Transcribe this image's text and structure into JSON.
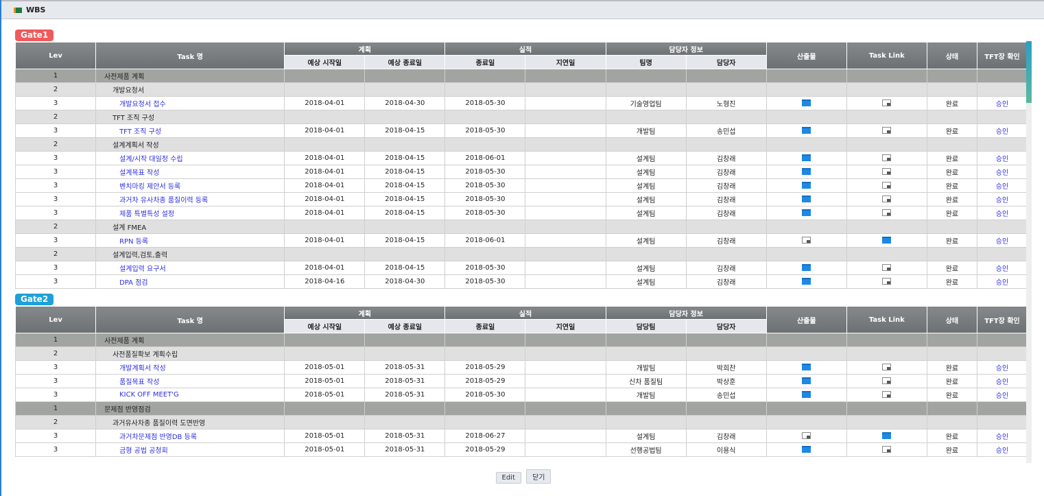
{
  "window": {
    "title": "WBS"
  },
  "buttons": {
    "edit": "Edit",
    "close": "닫기"
  },
  "colors": {
    "gate1": "#f05a5a",
    "gate2": "#1ea0d8"
  },
  "gates": [
    {
      "label": "Gate1",
      "headers": {
        "lev": "Lev",
        "task": "Task 명",
        "plan": "계획",
        "plan_start": "예상 시작일",
        "plan_end": "예상 종료일",
        "actual": "실적",
        "actual_end": "종료일",
        "delay": "지연일",
        "owner": "담당자 정보",
        "team": "팀명",
        "person": "담당자",
        "artifact": "산출물",
        "task_link": "Task Link",
        "status": "상태",
        "tft": "TFT장 확인"
      },
      "rows": [
        {
          "lev": "1",
          "task": "사전제품 계획"
        },
        {
          "lev": "2",
          "task": "개발요청서"
        },
        {
          "lev": "3",
          "task": "개발요청서 접수",
          "start": "2018-04-01",
          "end": "2018-04-30",
          "done": "2018-05-30",
          "delay": "",
          "team": "기술영업팀",
          "person": "노형진",
          "artifact": "folder-filled",
          "link": "folder-empty",
          "status": "완료",
          "tft": "승인"
        },
        {
          "lev": "2",
          "task": "TFT 조직 구성"
        },
        {
          "lev": "3",
          "task": "TFT 조직 구성",
          "start": "2018-04-01",
          "end": "2018-04-15",
          "done": "2018-05-30",
          "delay": "",
          "team": "개발팀",
          "person": "송민섭",
          "artifact": "folder-filled",
          "link": "folder-empty",
          "status": "완료",
          "tft": "승인"
        },
        {
          "lev": "2",
          "task": "설계계획서 작성"
        },
        {
          "lev": "3",
          "task": "설계/시작 대일정 수립",
          "start": "2018-04-01",
          "end": "2018-04-15",
          "done": "2018-06-01",
          "delay": "",
          "team": "설계팀",
          "person": "김창래",
          "artifact": "folder-filled",
          "link": "folder-empty",
          "status": "완료",
          "tft": "승인"
        },
        {
          "lev": "3",
          "task": "설계목표 작성",
          "start": "2018-04-01",
          "end": "2018-04-15",
          "done": "2018-05-30",
          "delay": "",
          "team": "설계팀",
          "person": "김창래",
          "artifact": "folder-filled",
          "link": "folder-empty",
          "status": "완료",
          "tft": "승인"
        },
        {
          "lev": "3",
          "task": "벤치마킹 제안서 등록",
          "start": "2018-04-01",
          "end": "2018-04-15",
          "done": "2018-05-30",
          "delay": "",
          "team": "설계팀",
          "person": "김창래",
          "artifact": "folder-filled",
          "link": "folder-empty",
          "status": "완료",
          "tft": "승인"
        },
        {
          "lev": "3",
          "task": "과거차 유사차종 품질이력 등록",
          "start": "2018-04-01",
          "end": "2018-04-15",
          "done": "2018-05-30",
          "delay": "",
          "team": "설계팀",
          "person": "김창래",
          "artifact": "folder-filled",
          "link": "folder-empty",
          "status": "완료",
          "tft": "승인"
        },
        {
          "lev": "3",
          "task": "제품 특별특성 설정",
          "start": "2018-04-01",
          "end": "2018-04-15",
          "done": "2018-05-30",
          "delay": "",
          "team": "설계팀",
          "person": "김창래",
          "artifact": "folder-filled",
          "link": "folder-empty",
          "status": "완료",
          "tft": "승인"
        },
        {
          "lev": "2",
          "task": "설계 FMEA"
        },
        {
          "lev": "3",
          "task": "RPN 등록",
          "start": "2018-04-01",
          "end": "2018-04-15",
          "done": "2018-06-01",
          "delay": "",
          "team": "설계팀",
          "person": "김창래",
          "artifact": "folder-empty",
          "link": "folder-filled",
          "status": "완료",
          "tft": "승인"
        },
        {
          "lev": "2",
          "task": "설계입력,검토,출력"
        },
        {
          "lev": "3",
          "task": "설계입력 요구서",
          "start": "2018-04-01",
          "end": "2018-04-15",
          "done": "2018-05-30",
          "delay": "",
          "team": "설계팀",
          "person": "김창래",
          "artifact": "folder-filled",
          "link": "folder-empty",
          "status": "완료",
          "tft": "승인"
        },
        {
          "lev": "3",
          "task": "DPA 점검",
          "start": "2018-04-16",
          "end": "2018-04-30",
          "done": "2018-05-30",
          "delay": "",
          "team": "설계팀",
          "person": "김창래",
          "artifact": "folder-filled",
          "link": "folder-empty",
          "status": "완료",
          "tft": "승인"
        }
      ]
    },
    {
      "label": "Gate2",
      "headers": {
        "lev": "Lev",
        "task": "Task 명",
        "plan": "계획",
        "plan_start": "예상 시작일",
        "plan_end": "예상 종료일",
        "actual": "실적",
        "actual_end": "종료일",
        "delay": "지연일",
        "owner": "담당자 정보",
        "team": "담당팀",
        "person": "담당자",
        "artifact": "산출물",
        "task_link": "Task Link",
        "status": "상태",
        "tft": "TFT장 확인"
      },
      "rows": [
        {
          "lev": "1",
          "task": "사전제품 계획"
        },
        {
          "lev": "2",
          "task": "사전품질확보 계획수립"
        },
        {
          "lev": "3",
          "task": "개발계획서 작성",
          "start": "2018-05-01",
          "end": "2018-05-31",
          "done": "2018-05-29",
          "delay": "",
          "team": "개발팀",
          "person": "박희찬",
          "artifact": "folder-filled",
          "link": "folder-empty",
          "status": "완료",
          "tft": "승인"
        },
        {
          "lev": "3",
          "task": "품질목표 작성",
          "start": "2018-05-01",
          "end": "2018-05-31",
          "done": "2018-05-29",
          "delay": "",
          "team": "신차 품질팀",
          "person": "박상훈",
          "artifact": "folder-filled",
          "link": "folder-empty",
          "status": "완료",
          "tft": "승인"
        },
        {
          "lev": "3",
          "task": "KICK OFF MEET'G",
          "start": "2018-05-01",
          "end": "2018-05-31",
          "done": "2018-05-30",
          "delay": "",
          "team": "개발팀",
          "person": "송민섭",
          "artifact": "folder-filled",
          "link": "folder-empty",
          "status": "완료",
          "tft": "승인"
        },
        {
          "lev": "1",
          "task": "문제점 반영점검"
        },
        {
          "lev": "2",
          "task": "과거유사차종 품질이력 도면반영"
        },
        {
          "lev": "3",
          "task": "과거차문제점 반영DB 등록",
          "start": "2018-05-01",
          "end": "2018-05-31",
          "done": "2018-06-27",
          "delay": "",
          "team": "설계팀",
          "person": "김창래",
          "artifact": "folder-empty",
          "link": "folder-filled",
          "status": "완료",
          "tft": "승인"
        },
        {
          "lev": "3",
          "task": "금형 공법 공청회",
          "start": "2018-05-01",
          "end": "2018-05-31",
          "done": "2018-05-29",
          "delay": "",
          "team": "선행공법팀",
          "person": "이용식",
          "artifact": "folder-filled",
          "link": "folder-empty",
          "status": "완료",
          "tft": "승인"
        }
      ]
    }
  ]
}
